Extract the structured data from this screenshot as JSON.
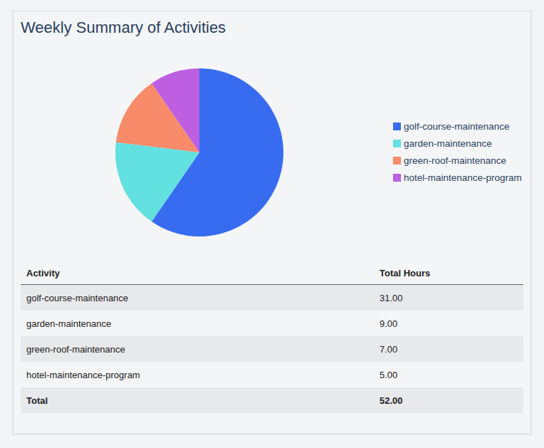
{
  "chart_data": {
    "type": "pie",
    "title": "Weekly Summary of Activities",
    "categories": [
      "golf-course-maintenance",
      "garden-maintenance",
      "green-roof-maintenance",
      "hotel-maintenance-program"
    ],
    "values": [
      31,
      9,
      7,
      5
    ],
    "colors": [
      "#386cf0",
      "#63e0e0",
      "#f78b6a",
      "#bd5fe0"
    ],
    "legend": "right"
  },
  "table": {
    "headers": [
      "Activity",
      "Total Hours"
    ],
    "rows": [
      [
        "golf-course-maintenance",
        "31.00"
      ],
      [
        "garden-maintenance",
        "9.00"
      ],
      [
        "green-roof-maintenance",
        "7.00"
      ],
      [
        "hotel-maintenance-program",
        "5.00"
      ]
    ],
    "footer": [
      "Total",
      "52.00"
    ]
  }
}
